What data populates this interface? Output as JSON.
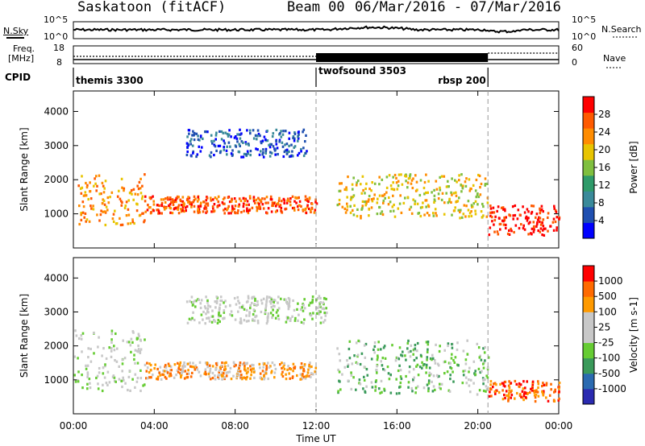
{
  "header": {
    "title": "Saskatoon (fitACF)",
    "beam": "Beam 00",
    "dates": "06/Mar/2016 - 07/Mar/2016"
  },
  "strip_labels": {
    "nsky": "N.Sky",
    "nsearch": "N.Search",
    "freq": "Freq.",
    "freq_unit": "[MHz]",
    "nave": "Nave",
    "cpid": "CPID",
    "noise_ticks_left": [
      "10^5",
      "10^0"
    ],
    "noise_ticks_right": [
      "10^5",
      "10^0"
    ],
    "freq_ticks": [
      "18",
      "8"
    ],
    "nave_ticks": [
      "60",
      "0"
    ]
  },
  "cpid_segments": [
    {
      "name": "themis 3300",
      "start_hour": 0.0,
      "end_hour": 12.0
    },
    {
      "name": "twofsound 3503",
      "start_hour": 12.0,
      "end_hour": 20.5
    },
    {
      "name": "rbsp 200",
      "start_hour": 20.5,
      "end_hour": 24.0
    }
  ],
  "colors": {
    "power_scale": [
      "#0000ff",
      "#1f4fb0",
      "#3a8a9a",
      "#2f9b6a",
      "#7fbf3f",
      "#e8c400",
      "#ff8c00",
      "#ff5a00",
      "#ff0000"
    ],
    "velocity_scale": [
      "#2a2ab0",
      "#2a6ab0",
      "#3a9a5a",
      "#66cc33",
      "#c8c8c8",
      "#c8c8c8",
      "#ff9a00",
      "#ff6a00",
      "#ff0000"
    ]
  },
  "chart_data": [
    {
      "type": "heatmap",
      "name": "power",
      "ylabel": "Slant Range [km]",
      "xlabel": "Time UT",
      "xlim": [
        0,
        24
      ],
      "ylim": [
        0,
        4600
      ],
      "xticks": [
        "00:00",
        "04:00",
        "08:00",
        "12:00",
        "16:00",
        "20:00",
        "00:00"
      ],
      "yticks": [
        1000,
        2000,
        3000,
        4000
      ],
      "colorbar_label": "Power [dB]",
      "colorbar_ticks": [
        "28",
        "24",
        "20",
        "16",
        "12",
        "8",
        "4"
      ],
      "features": [
        {
          "hour_start": 0.2,
          "hour_end": 3.5,
          "range_start": 700,
          "range_end": 2200,
          "level": 6
        },
        {
          "hour_start": 3.5,
          "hour_end": 12.0,
          "range_start": 1050,
          "range_end": 1550,
          "level": 7
        },
        {
          "hour_start": 5.5,
          "hour_end": 11.5,
          "range_start": 2700,
          "range_end": 3500,
          "level": 1
        },
        {
          "hour_start": 13.0,
          "hour_end": 20.5,
          "range_start": 900,
          "range_end": 2200,
          "level": 5
        },
        {
          "hour_start": 20.5,
          "hour_end": 24.0,
          "range_start": 400,
          "range_end": 1300,
          "level": 8
        }
      ]
    },
    {
      "type": "heatmap",
      "name": "velocity",
      "ylabel": "Slant Range [km]",
      "xlabel": "Time UT",
      "xlim": [
        0,
        24
      ],
      "ylim": [
        0,
        4600
      ],
      "xticks": [
        "00:00",
        "04:00",
        "08:00",
        "12:00",
        "16:00",
        "20:00",
        "00:00"
      ],
      "yticks": [
        1000,
        2000,
        3000,
        4000
      ],
      "colorbar_label": "Velocity [m s-1]",
      "colorbar_ticks": [
        "1000",
        "500",
        "100",
        "25",
        "-25",
        "-100",
        "-500",
        "-1000"
      ],
      "features": [
        {
          "hour_start": 0.0,
          "hour_end": 3.5,
          "range_start": 700,
          "range_end": 2500,
          "level": 4
        },
        {
          "hour_start": 3.5,
          "hour_end": 12.0,
          "range_start": 1050,
          "range_end": 1550,
          "level": 6
        },
        {
          "hour_start": 5.5,
          "hour_end": 12.5,
          "range_start": 2700,
          "range_end": 3500,
          "level": 4
        },
        {
          "hour_start": 13.0,
          "hour_end": 20.5,
          "range_start": 600,
          "range_end": 2200,
          "level": 3
        },
        {
          "hour_start": 20.5,
          "hour_end": 24.0,
          "range_start": 400,
          "range_end": 1000,
          "level": 7
        }
      ]
    }
  ]
}
